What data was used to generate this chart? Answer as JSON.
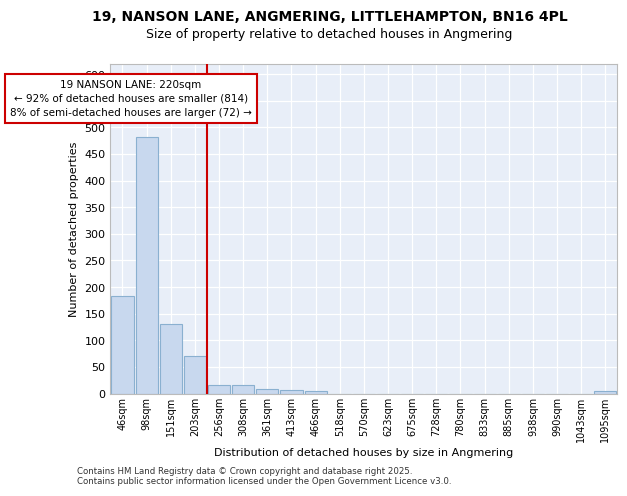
{
  "title_line1": "19, NANSON LANE, ANGMERING, LITTLEHAMPTON, BN16 4PL",
  "title_line2": "Size of property relative to detached houses in Angmering",
  "xlabel": "Distribution of detached houses by size in Angmering",
  "ylabel": "Number of detached properties",
  "annotation_title": "19 NANSON LANE: 220sqm",
  "annotation_line2": "← 92% of detached houses are smaller (814)",
  "annotation_line3": "8% of semi-detached houses are larger (72) →",
  "footnote_line1": "Contains HM Land Registry data © Crown copyright and database right 2025.",
  "footnote_line2": "Contains public sector information licensed under the Open Government Licence v3.0.",
  "bar_color": "#c8d8ee",
  "bar_edge_color": "#8ab0d0",
  "vline_color": "#cc0000",
  "annotation_box_edgecolor": "#cc0000",
  "background_color": "#e8eef8",
  "grid_color": "#ffffff",
  "title_color": "#000000",
  "categories": [
    "46sqm",
    "98sqm",
    "151sqm",
    "203sqm",
    "256sqm",
    "308sqm",
    "361sqm",
    "413sqm",
    "466sqm",
    "518sqm",
    "570sqm",
    "623sqm",
    "675sqm",
    "728sqm",
    "780sqm",
    "833sqm",
    "885sqm",
    "938sqm",
    "990sqm",
    "1043sqm",
    "1095sqm"
  ],
  "values": [
    183,
    481,
    130,
    70,
    16,
    16,
    8,
    6,
    5,
    0,
    0,
    0,
    0,
    0,
    0,
    0,
    0,
    0,
    0,
    0,
    5
  ],
  "vline_x": 3.5,
  "ylim": [
    0,
    620
  ],
  "yticks": [
    0,
    50,
    100,
    150,
    200,
    250,
    300,
    350,
    400,
    450,
    500,
    550,
    600
  ]
}
